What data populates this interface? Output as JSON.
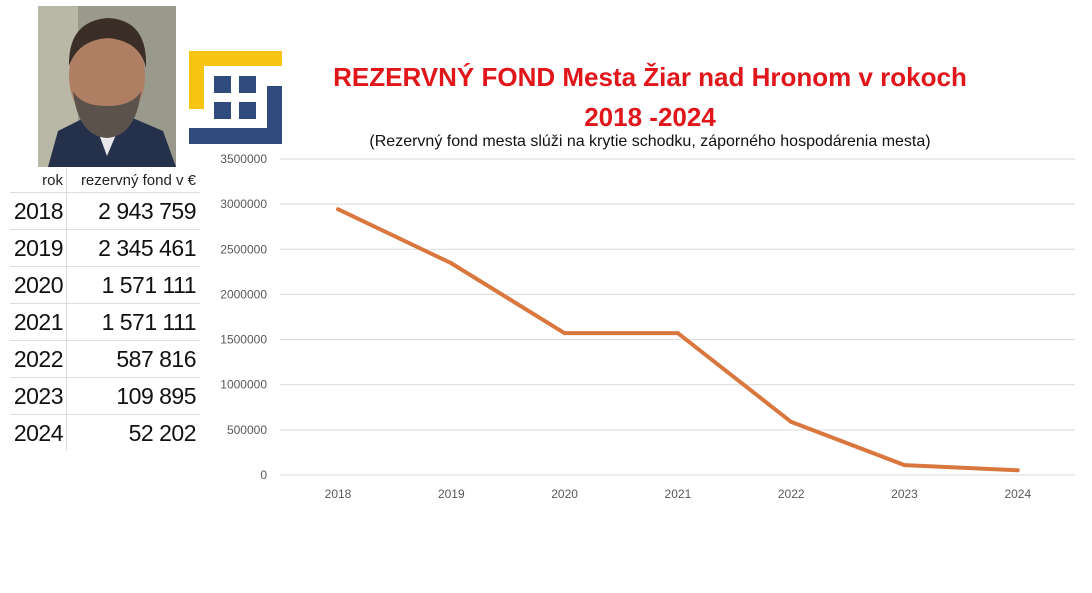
{
  "header": {
    "title_line1": "REZERVNÝ FOND Mesta Žiar nad Hronom v rokoch",
    "title_line2": "2018 -2024",
    "subtitle": "(Rezervný fond mesta slúži na krytie schodku, záporného hospodárenia mesta)"
  },
  "colors": {
    "title": "#e0161b",
    "line": "#d9773f",
    "logo_yellow": "#f7c511",
    "logo_blue": "#2f4a7c"
  },
  "table": {
    "headers": [
      "rok",
      "rezervný fond v €"
    ],
    "rows": [
      [
        "2018",
        "2 943 759"
      ],
      [
        "2019",
        "2 345 461"
      ],
      [
        "2020",
        "1 571 111"
      ],
      [
        "2021",
        "1 571 111"
      ],
      [
        "2022",
        "587 816"
      ],
      [
        "2023",
        "109 895"
      ],
      [
        "2024",
        "52 202"
      ]
    ]
  },
  "chart_data": {
    "type": "line",
    "categories": [
      "2018",
      "2019",
      "2020",
      "2021",
      "2022",
      "2023",
      "2024"
    ],
    "values": [
      2943759,
      2345461,
      1571111,
      1571111,
      587816,
      109895,
      52202
    ],
    "ylim": [
      0,
      3500000
    ],
    "yticks": [
      "0",
      "500000",
      "1000000",
      "1500000",
      "2000000",
      "2500000",
      "3000000",
      "3500000"
    ],
    "grid": true,
    "legend": "none"
  }
}
